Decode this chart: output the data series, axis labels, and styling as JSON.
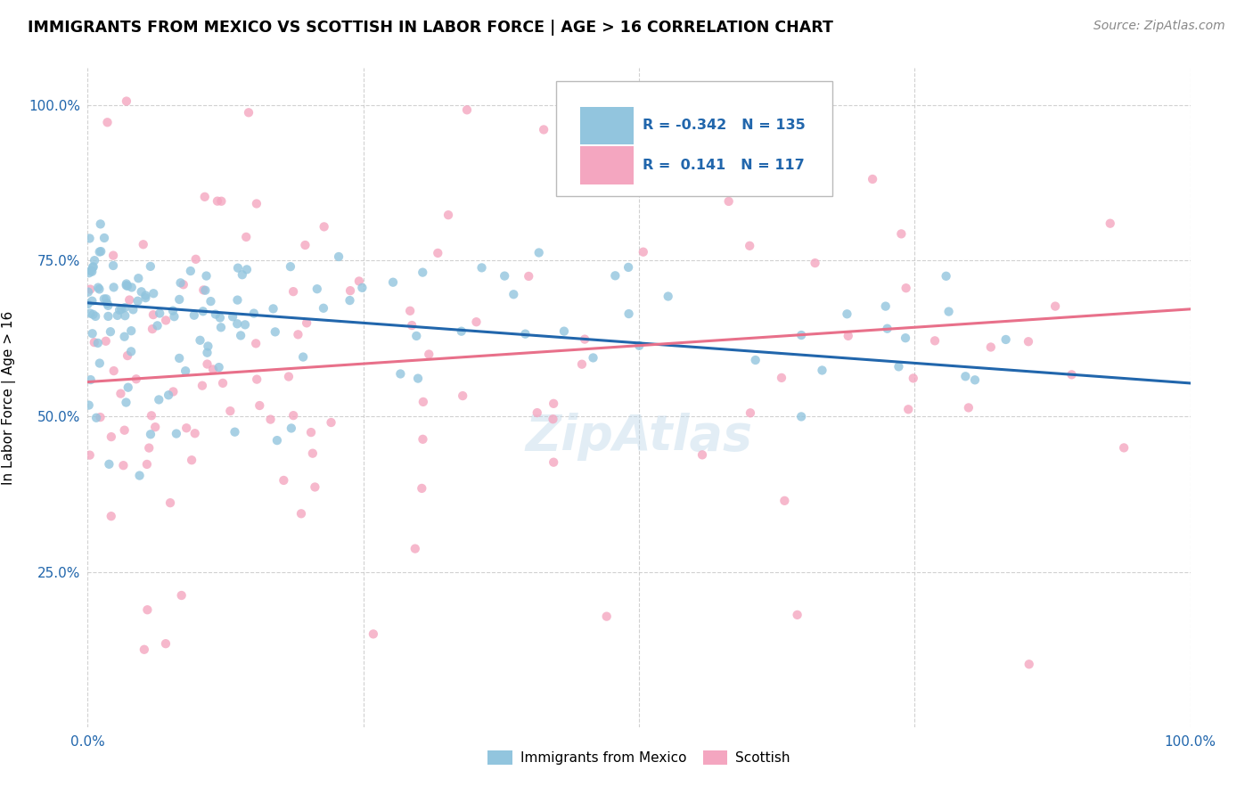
{
  "title": "IMMIGRANTS FROM MEXICO VS SCOTTISH IN LABOR FORCE | AGE > 16 CORRELATION CHART",
  "source": "Source: ZipAtlas.com",
  "ylabel": "In Labor Force | Age > 16",
  "xlim": [
    0.0,
    1.0
  ],
  "ylim": [
    0.0,
    1.06
  ],
  "yticks": [
    0.25,
    0.5,
    0.75,
    1.0
  ],
  "ytick_labels": [
    "25.0%",
    "50.0%",
    "75.0%",
    "100.0%"
  ],
  "blue_R": -0.342,
  "blue_N": 135,
  "pink_R": 0.141,
  "pink_N": 117,
  "blue_color": "#92c5de",
  "pink_color": "#f4a6c0",
  "blue_line_color": "#2166ac",
  "pink_line_color": "#e8708a",
  "legend_label_blue": "Immigrants from Mexico",
  "legend_label_pink": "Scottish",
  "watermark": "ZipAtlas",
  "background_color": "#ffffff",
  "grid_color": "#cccccc",
  "blue_line_start_y": 0.682,
  "blue_line_end_y": 0.553,
  "pink_line_start_y": 0.555,
  "pink_line_end_y": 0.672
}
